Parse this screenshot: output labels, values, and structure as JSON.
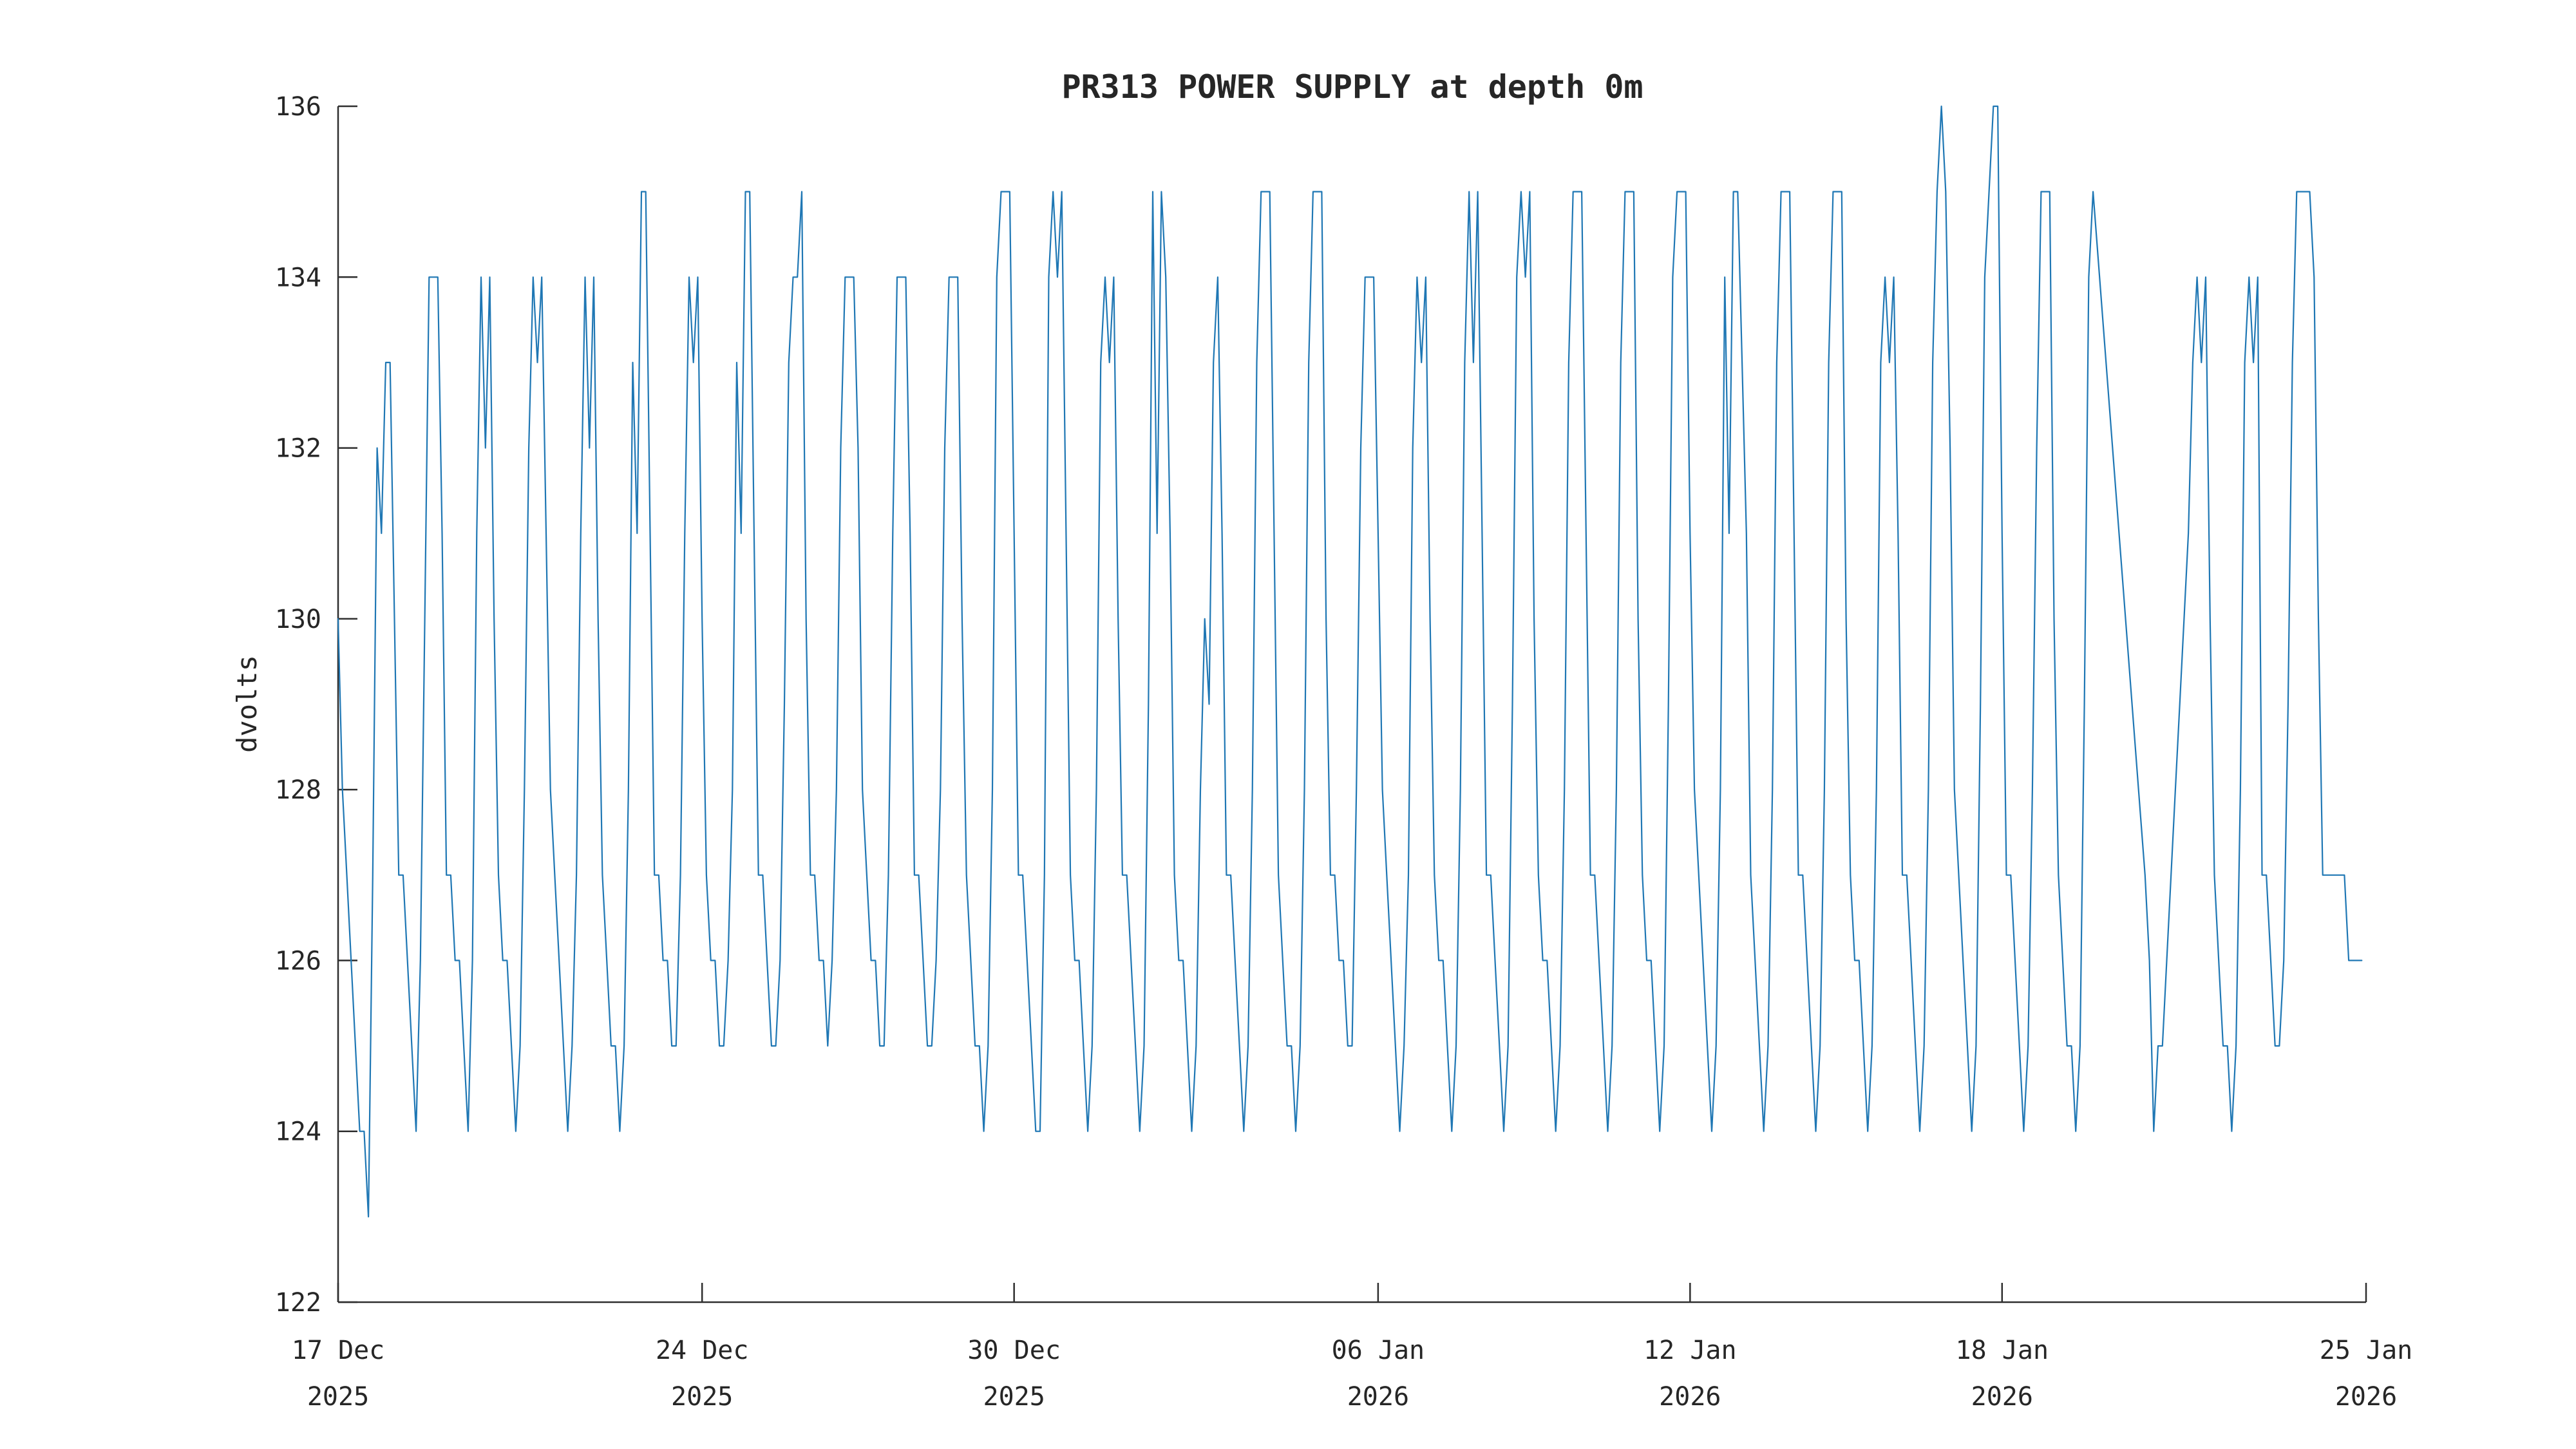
{
  "figure": {
    "background": "#ffffff"
  },
  "chart_data": {
    "type": "line",
    "title": "PR313 POWER SUPPLY at depth 0m",
    "ylabel": "dvolts",
    "xlabel": "",
    "ylim": [
      122,
      136
    ],
    "yticks": [
      122,
      124,
      126,
      128,
      130,
      132,
      134,
      136
    ],
    "xticks": [
      {
        "line1": "17 Dec",
        "line2": "2025",
        "day": 0
      },
      {
        "line1": "24 Dec",
        "line2": "2025",
        "day": 7
      },
      {
        "line1": "30 Dec",
        "line2": "2025",
        "day": 13
      },
      {
        "line1": "06 Jan",
        "line2": "2026",
        "day": 20
      },
      {
        "line1": "12 Jan",
        "line2": "2026",
        "day": 26
      },
      {
        "line1": "18 Jan",
        "line2": "2026",
        "day": 32
      },
      {
        "line1": "25 Jan",
        "line2": "2026",
        "day": 39
      }
    ],
    "x_range_days": [
      0,
      39
    ],
    "x_start_label": "17 Dec 2025",
    "x_end_label": "25 Jan 2026",
    "sampling_hours": 2,
    "samples_per_day": 12,
    "grid": false,
    "legend": "none",
    "line_color": "#1f77b4",
    "axis_color": "#2e2e2e",
    "text_color": "#262626",
    "series_name": "dvolts",
    "gap_note": "data gap: no samples between 19 Jan ~18:00 (135) and 20 Jan ~18:00 (127)",
    "days": [
      [
        130,
        128,
        127,
        126,
        125,
        124,
        124,
        123,
        127,
        132,
        131,
        133
      ],
      [
        133,
        130,
        127,
        127,
        126,
        125,
        124,
        126,
        130,
        134,
        134,
        134
      ],
      [
        131,
        127,
        127,
        126,
        126,
        125,
        124,
        126,
        131,
        134,
        132,
        134
      ],
      [
        130,
        127,
        126,
        126,
        125,
        124,
        125,
        128,
        132,
        134,
        133,
        134
      ],
      [
        131,
        128,
        127,
        126,
        125,
        124,
        125,
        127,
        131,
        134,
        132,
        134
      ],
      [
        130,
        127,
        126,
        125,
        125,
        124,
        125,
        128,
        133,
        131,
        135,
        135
      ],
      [
        131,
        127,
        127,
        126,
        126,
        125,
        125,
        127,
        131,
        134,
        133,
        134
      ],
      [
        130,
        127,
        126,
        126,
        125,
        125,
        126,
        128,
        133,
        131,
        135,
        135
      ],
      [
        131,
        127,
        127,
        126,
        125,
        125,
        126,
        129,
        133,
        134,
        134,
        135
      ],
      [
        130,
        127,
        127,
        126,
        126,
        125,
        126,
        128,
        132,
        134,
        134,
        134
      ],
      [
        132,
        128,
        127,
        126,
        126,
        125,
        125,
        127,
        131,
        134,
        134,
        134
      ],
      [
        131,
        127,
        127,
        126,
        125,
        125,
        126,
        128,
        132,
        134,
        134,
        134
      ],
      [
        130,
        127,
        126,
        125,
        125,
        124,
        125,
        128,
        134,
        135,
        135,
        135
      ],
      [
        131,
        127,
        127,
        126,
        125,
        124,
        124,
        127,
        134,
        135,
        134,
        135
      ],
      [
        131,
        127,
        126,
        126,
        125,
        124,
        125,
        128,
        133,
        134,
        133,
        134
      ],
      [
        130,
        127,
        127,
        126,
        125,
        124,
        125,
        129,
        135,
        131,
        135,
        134
      ],
      [
        131,
        127,
        126,
        126,
        125,
        124,
        125,
        128,
        130,
        129,
        133,
        134
      ],
      [
        131,
        127,
        127,
        126,
        125,
        124,
        125,
        128,
        133,
        135,
        135,
        135
      ],
      [
        131,
        127,
        126,
        125,
        125,
        124,
        125,
        128,
        133,
        135,
        135,
        135
      ],
      [
        130,
        127,
        127,
        126,
        126,
        125,
        125,
        128,
        132,
        134,
        134,
        134
      ],
      [
        131,
        128,
        127,
        126,
        125,
        124,
        125,
        127,
        132,
        134,
        133,
        134
      ],
      [
        130,
        127,
        126,
        126,
        125,
        124,
        125,
        128,
        133,
        135,
        133,
        135
      ],
      [
        131,
        127,
        127,
        126,
        125,
        124,
        125,
        129,
        134,
        135,
        134,
        135
      ],
      [
        130,
        127,
        126,
        126,
        125,
        124,
        125,
        128,
        133,
        135,
        135,
        135
      ],
      [
        131,
        127,
        127,
        126,
        125,
        124,
        125,
        128,
        133,
        135,
        135,
        135
      ],
      [
        130,
        127,
        126,
        126,
        125,
        124,
        125,
        129,
        134,
        135,
        135,
        135
      ],
      [
        131,
        128,
        127,
        126,
        125,
        124,
        125,
        128,
        134,
        131,
        135,
        135
      ],
      [
        133,
        131,
        127,
        126,
        125,
        124,
        125,
        128,
        133,
        135,
        135,
        135
      ],
      [
        131,
        127,
        127,
        126,
        125,
        124,
        125,
        128,
        133,
        135,
        135,
        135
      ],
      [
        130,
        127,
        126,
        126,
        125,
        124,
        125,
        128,
        133,
        134,
        133,
        134
      ],
      [
        131,
        127,
        127,
        126,
        125,
        124,
        125,
        128,
        133,
        135,
        136,
        135
      ],
      [
        132,
        128,
        127,
        126,
        125,
        124,
        125,
        129,
        134,
        135,
        136,
        136
      ],
      [
        131,
        127,
        127,
        126,
        125,
        124,
        125,
        128,
        132,
        135,
        135,
        135
      ],
      [
        130,
        127,
        126,
        125,
        125,
        124,
        125,
        129,
        134,
        135,
        null,
        null
      ],
      [
        null,
        null,
        null,
        null,
        null,
        null,
        null,
        null,
        null,
        127,
        126,
        124
      ],
      [
        125,
        125,
        126,
        127,
        128,
        129,
        130,
        131,
        133,
        134,
        133,
        134
      ],
      [
        130,
        127,
        126,
        125,
        125,
        124,
        125,
        128,
        133,
        134,
        133,
        134
      ],
      [
        127,
        127,
        126,
        125,
        125,
        126,
        129,
        133,
        135,
        135,
        135,
        135
      ],
      [
        134,
        130,
        127,
        127,
        127,
        127,
        127,
        127,
        126,
        126,
        126,
        126
      ]
    ]
  }
}
